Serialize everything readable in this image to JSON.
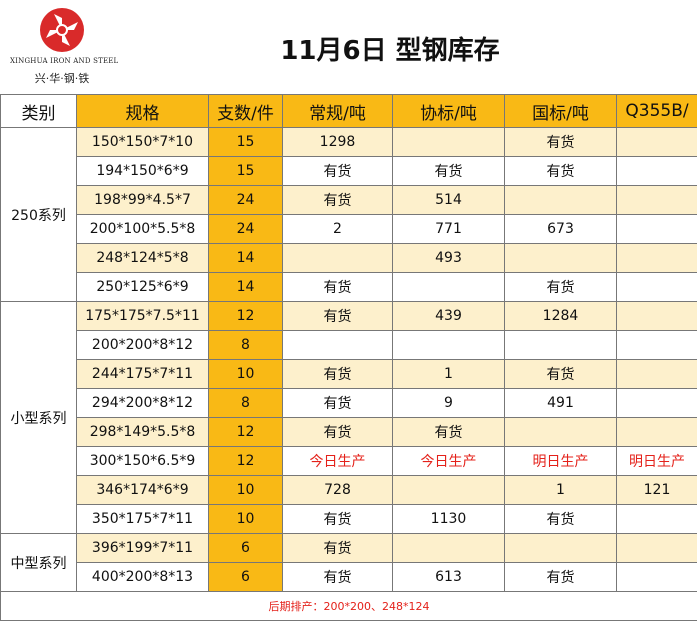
{
  "header": {
    "logo_en": "XINGHUA IRON AND STEEL",
    "logo_cn": "兴·华·钢·铁",
    "title": "11月6日 型钢库存"
  },
  "columns": [
    "类别",
    "规格",
    "支数/件",
    "常规/吨",
    "协标/吨",
    "国标/吨",
    "Q355B/"
  ],
  "groups": [
    {
      "category": "250系列",
      "rows": [
        {
          "spec": "150*150*7*10",
          "qty": "15",
          "regular": "1298",
          "assoc": "",
          "national": "有货",
          "q355b": ""
        },
        {
          "spec": "194*150*6*9",
          "qty": "15",
          "regular": "有货",
          "assoc": "有货",
          "national": "有货",
          "q355b": ""
        },
        {
          "spec": "198*99*4.5*7",
          "qty": "24",
          "regular": "有货",
          "assoc": "514",
          "national": "",
          "q355b": ""
        },
        {
          "spec": "200*100*5.5*8",
          "qty": "24",
          "regular": "2",
          "assoc": "771",
          "national": "673",
          "q355b": ""
        },
        {
          "spec": "248*124*5*8",
          "qty": "14",
          "regular": "",
          "assoc": "493",
          "national": "",
          "q355b": ""
        },
        {
          "spec": "250*125*6*9",
          "qty": "14",
          "regular": "有货",
          "assoc": "",
          "national": "有货",
          "q355b": ""
        }
      ]
    },
    {
      "category": "小型系列",
      "rows": [
        {
          "spec": "175*175*7.5*11",
          "qty": "12",
          "regular": "有货",
          "assoc": "439",
          "national": "1284",
          "q355b": ""
        },
        {
          "spec": "200*200*8*12",
          "qty": "8",
          "regular": "",
          "assoc": "",
          "national": "",
          "q355b": ""
        },
        {
          "spec": "244*175*7*11",
          "qty": "10",
          "regular": "有货",
          "assoc": "1",
          "national": "有货",
          "q355b": ""
        },
        {
          "spec": "294*200*8*12",
          "qty": "8",
          "regular": "有货",
          "assoc": "9",
          "national": "491",
          "q355b": ""
        },
        {
          "spec": "298*149*5.5*8",
          "qty": "12",
          "regular": "有货",
          "assoc": "有货",
          "national": "",
          "q355b": ""
        },
        {
          "spec": "300*150*6.5*9",
          "qty": "12",
          "regular": "今日生产",
          "assoc": "今日生产",
          "national": "明日生产",
          "q355b": "明日生产",
          "red": true
        },
        {
          "spec": "346*174*6*9",
          "qty": "10",
          "regular": "728",
          "assoc": "",
          "national": "1",
          "q355b": "121"
        },
        {
          "spec": "350*175*7*11",
          "qty": "10",
          "regular": "有货",
          "assoc": "1130",
          "national": "有货",
          "q355b": ""
        }
      ]
    },
    {
      "category": "中型系列",
      "rows": [
        {
          "spec": "396*199*7*11",
          "qty": "6",
          "regular": "有货",
          "assoc": "",
          "national": "",
          "q355b": ""
        },
        {
          "spec": "400*200*8*13",
          "qty": "6",
          "regular": "有货",
          "assoc": "613",
          "national": "有货",
          "q355b": ""
        }
      ]
    }
  ],
  "footer": "后期排产：200*200、248*124",
  "colors": {
    "highlight": "#f9b915",
    "shade": "#fdf0cc",
    "red": "#e4211a",
    "logo": "#d92a2a"
  }
}
